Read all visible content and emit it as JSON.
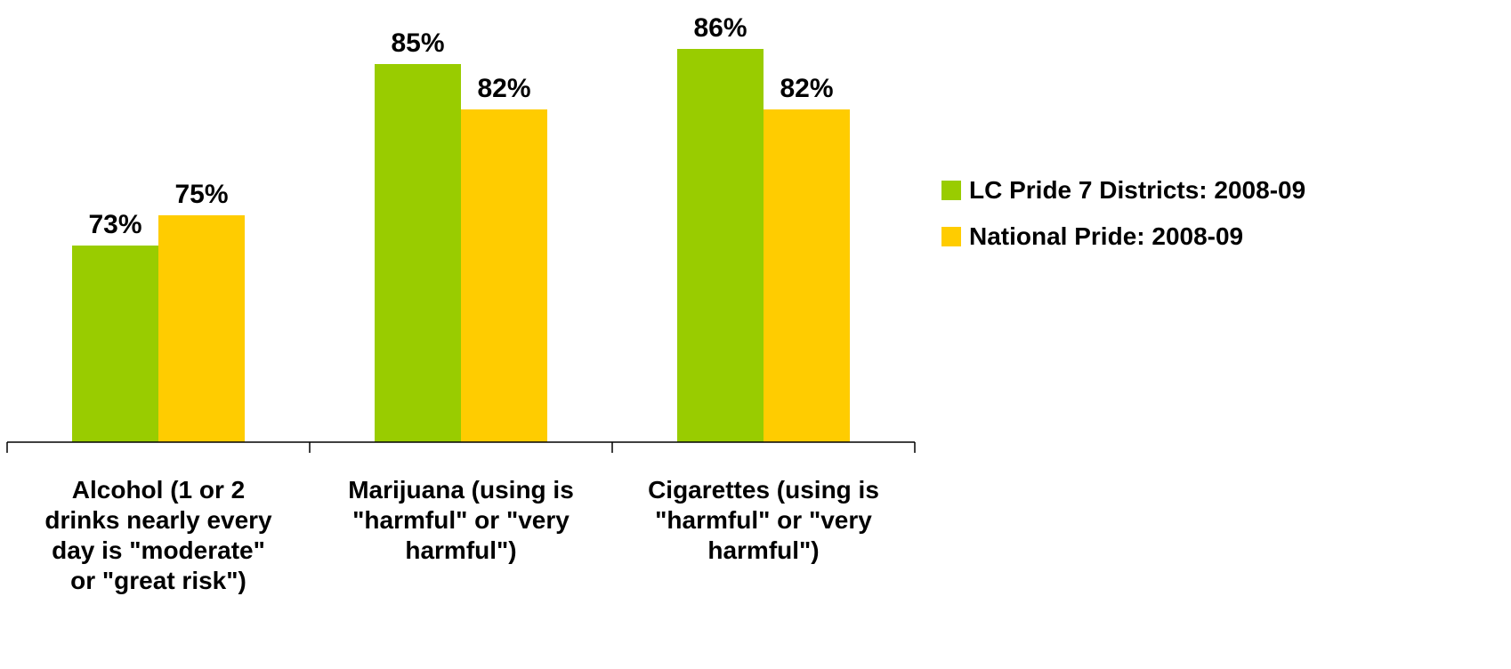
{
  "chart_data": {
    "type": "bar",
    "categories": [
      "Alcohol (1 or 2 drinks nearly every day is \"moderate\" or \"great risk\")",
      "Marijuana (using is \"harmful\" or \"very harmful\")",
      "Cigarettes (using is \"harmful\" or \"very harmful\")"
    ],
    "category_lines": [
      [
        "Alcohol (1 or 2",
        "drinks nearly every",
        "day is \"moderate\"",
        "or \"great risk\")"
      ],
      [
        "Marijuana (using is",
        "\"harmful\" or \"very",
        "harmful\")"
      ],
      [
        "Cigarettes (using is",
        "\"harmful\" or \"very",
        "harmful\")"
      ]
    ],
    "series": [
      {
        "name": "LC Pride 7 Districts: 2008-09",
        "values": [
          73,
          85,
          86
        ],
        "labels": [
          "73%",
          "85%",
          "86%"
        ],
        "color": "#99CC00"
      },
      {
        "name": "National Pride: 2008-09",
        "values": [
          75,
          82,
          82
        ],
        "labels": [
          "75%",
          "82%",
          "82%"
        ],
        "color": "#FFCC00"
      }
    ],
    "value_suffix": "%",
    "ylim": [
      60,
      88
    ],
    "grid": false,
    "legend_position": "right",
    "axis_color": "#000000"
  }
}
